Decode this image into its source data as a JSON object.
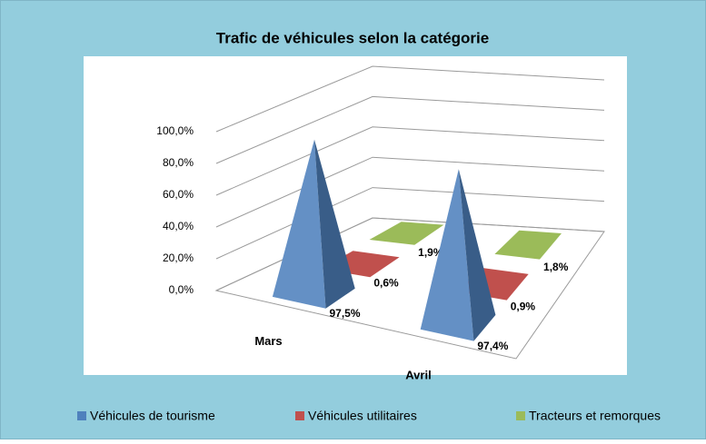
{
  "chart_data": {
    "type": "pyramid3d",
    "title": "Trafic de véhicules selon la catégorie",
    "categories": [
      "Mars",
      "Avril"
    ],
    "series": [
      {
        "name": "Véhicules de tourisme",
        "color": "#4f81bd",
        "values": [
          97.5,
          97.4
        ],
        "value_labels": [
          "97,5%",
          "97,4%"
        ]
      },
      {
        "name": "Véhicules utilitaires",
        "color": "#c0504d",
        "values": [
          0.6,
          0.9
        ],
        "value_labels": [
          "0,6%",
          "0,9%"
        ]
      },
      {
        "name": "Tracteurs et remorques",
        "color": "#9bbb59",
        "values": [
          1.9,
          1.8
        ],
        "value_labels": [
          "1,9%",
          "1,8%"
        ]
      }
    ],
    "ylim": [
      0,
      100
    ],
    "yticks": [
      {
        "value": 0,
        "label": "0,0%"
      },
      {
        "value": 20,
        "label": "20,0%"
      },
      {
        "value": 40,
        "label": "40,0%"
      },
      {
        "value": 60,
        "label": "60,0%"
      },
      {
        "value": 80,
        "label": "80,0%"
      },
      {
        "value": 100,
        "label": "100,0%"
      }
    ],
    "grid": true,
    "legend": "bottom"
  }
}
